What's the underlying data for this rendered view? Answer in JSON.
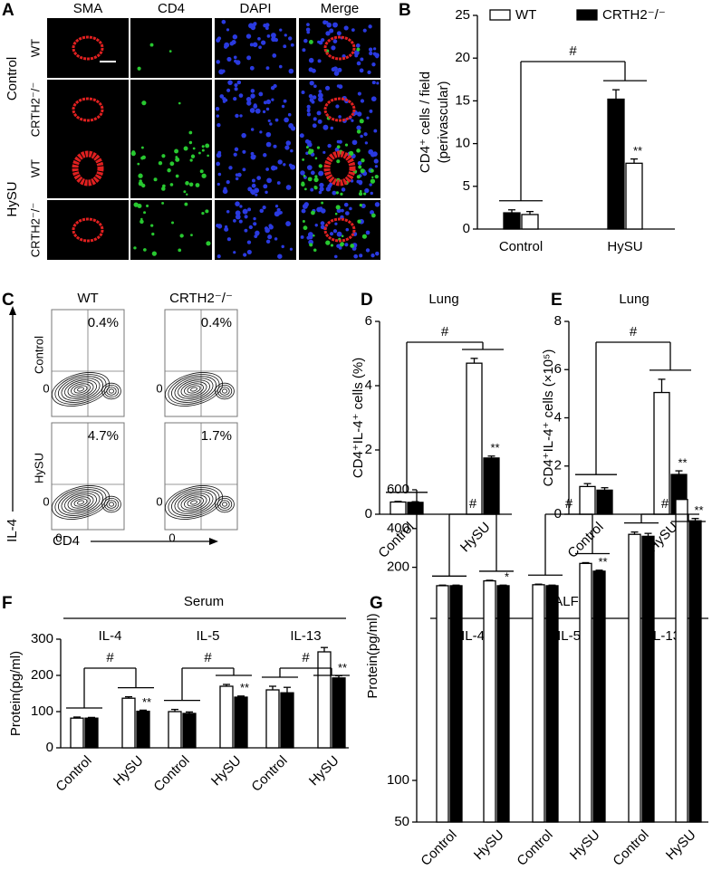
{
  "figure": {
    "panel_labels": [
      "A",
      "B",
      "C",
      "D",
      "E",
      "F",
      "G"
    ],
    "micrograph": {
      "channels": [
        "SMA",
        "CD4",
        "DAPI",
        "Merge"
      ],
      "channel_colors": [
        "#e8202a",
        "#22b026",
        "#2233dd",
        "#f0a030"
      ],
      "groups": [
        {
          "name": "Control",
          "rows": [
            "WT",
            "CRTH2⁻/⁻"
          ]
        },
        {
          "name": "HySU",
          "rows": [
            "WT",
            "CRTH2⁻/⁻"
          ]
        }
      ]
    },
    "flow": {
      "columns": [
        "WT",
        "CRTH2⁻/⁻"
      ],
      "rows": [
        "Control",
        "HySU"
      ],
      "percents": [
        [
          "0.4%",
          "0.4%"
        ],
        [
          "4.7%",
          "1.7%"
        ]
      ],
      "y_axis": "IL-4",
      "x_axis": "CD4",
      "zero": "0"
    }
  },
  "chart_data": [
    {
      "type": "bar",
      "reverse_bars": true,
      "legend": "top",
      "categories": [
        "Control",
        "HySU"
      ],
      "ylabel": [
        "CD4⁺ cells / field",
        "(perivascular)"
      ],
      "ylim": [
        0,
        25
      ],
      "yticks": [
        0,
        5,
        10,
        15,
        20,
        25
      ],
      "series": [
        {
          "name": "WT",
          "color": "#ffffff",
          "values": [
            1.7,
            7.7
          ],
          "errors": [
            0.35,
            0.5
          ],
          "stars": [
            null,
            "**"
          ]
        },
        {
          "name": "CRTH2⁻/⁻",
          "color": "#000000",
          "values": [
            1.9,
            15.2
          ],
          "errors": [
            0.35,
            1.1
          ]
        }
      ],
      "comparisons": [
        "#"
      ]
    },
    {
      "type": "bar",
      "title": "Lung",
      "categories": [
        "Control",
        "HySU"
      ],
      "ylabel": [
        "CD4⁺IL-4⁺ cells (%)"
      ],
      "ylim": [
        0,
        6
      ],
      "yticks": [
        0,
        2,
        4,
        6
      ],
      "series": [
        {
          "color": "#ffffff",
          "values": [
            0.38,
            4.7
          ],
          "errors": [
            0.02,
            0.15
          ]
        },
        {
          "color": "#000000",
          "values": [
            0.37,
            1.75
          ],
          "errors": [
            0.02,
            0.06
          ],
          "stars": [
            null,
            "**"
          ]
        }
      ],
      "comparisons": [
        "#"
      ]
    },
    {
      "type": "bar",
      "title": "Lung",
      "categories": [
        "Control",
        "HySU"
      ],
      "ylabel": [
        "CD4⁺IL-4⁺ cells (×10⁵)"
      ],
      "ylim": [
        0,
        8
      ],
      "yticks": [
        0,
        2,
        4,
        6,
        8
      ],
      "series": [
        {
          "color": "#ffffff",
          "values": [
            1.15,
            5.05
          ],
          "errors": [
            0.12,
            0.55
          ]
        },
        {
          "color": "#000000",
          "values": [
            1.0,
            1.65
          ],
          "errors": [
            0.1,
            0.15
          ],
          "stars": [
            null,
            "**"
          ]
        }
      ],
      "comparisons": [
        "#"
      ]
    },
    {
      "type": "bar",
      "title": "Serum",
      "group_labels": [
        "IL-4",
        "IL-5",
        "IL-13"
      ],
      "categories": [
        "Control",
        "HySU",
        "Control",
        "HySU",
        "Control",
        "HySU"
      ],
      "ylabel": [
        "Protein(pg/ml)"
      ],
      "ylim": [
        0,
        300
      ],
      "yticks": [
        0,
        100,
        200,
        300
      ],
      "series": [
        {
          "color": "#ffffff",
          "values": [
            82,
            137,
            100,
            170,
            160,
            265
          ],
          "errors": [
            3,
            4,
            6,
            5,
            10,
            12
          ]
        },
        {
          "color": "#000000",
          "values": [
            82,
            101,
            95,
            140,
            152,
            193
          ],
          "errors": [
            2,
            3,
            4,
            3,
            15,
            6
          ],
          "stars": [
            null,
            "**",
            null,
            "**",
            null,
            "**"
          ]
        }
      ],
      "comparisons": [
        "#",
        "#",
        "#"
      ]
    },
    {
      "type": "bar",
      "title": "BALF",
      "group_labels": [
        "IL-4",
        "IL-5",
        "IL-13"
      ],
      "categories": [
        "Control",
        "HySU",
        "Control",
        "HySU",
        "Control",
        "HySU"
      ],
      "ylabel": [
        "Protein(pg/ml)"
      ],
      "ylim": [
        50,
        600
      ],
      "ybreak": 100,
      "yticks": [
        50,
        100,
        200,
        400,
        600
      ],
      "series": [
        {
          "color": "#ffffff",
          "values": [
            105,
            130,
            110,
            220,
            370,
            550
          ],
          "errors": [
            3,
            3,
            3,
            4,
            12,
            12
          ]
        },
        {
          "color": "#000000",
          "values": [
            105,
            105,
            105,
            180,
            360,
            440
          ],
          "errors": [
            3,
            3,
            3,
            5,
            15,
            12
          ],
          "stars": [
            null,
            "*",
            null,
            "**",
            null,
            "**"
          ]
        }
      ],
      "comparisons": [
        "#",
        "#",
        "#"
      ]
    }
  ]
}
